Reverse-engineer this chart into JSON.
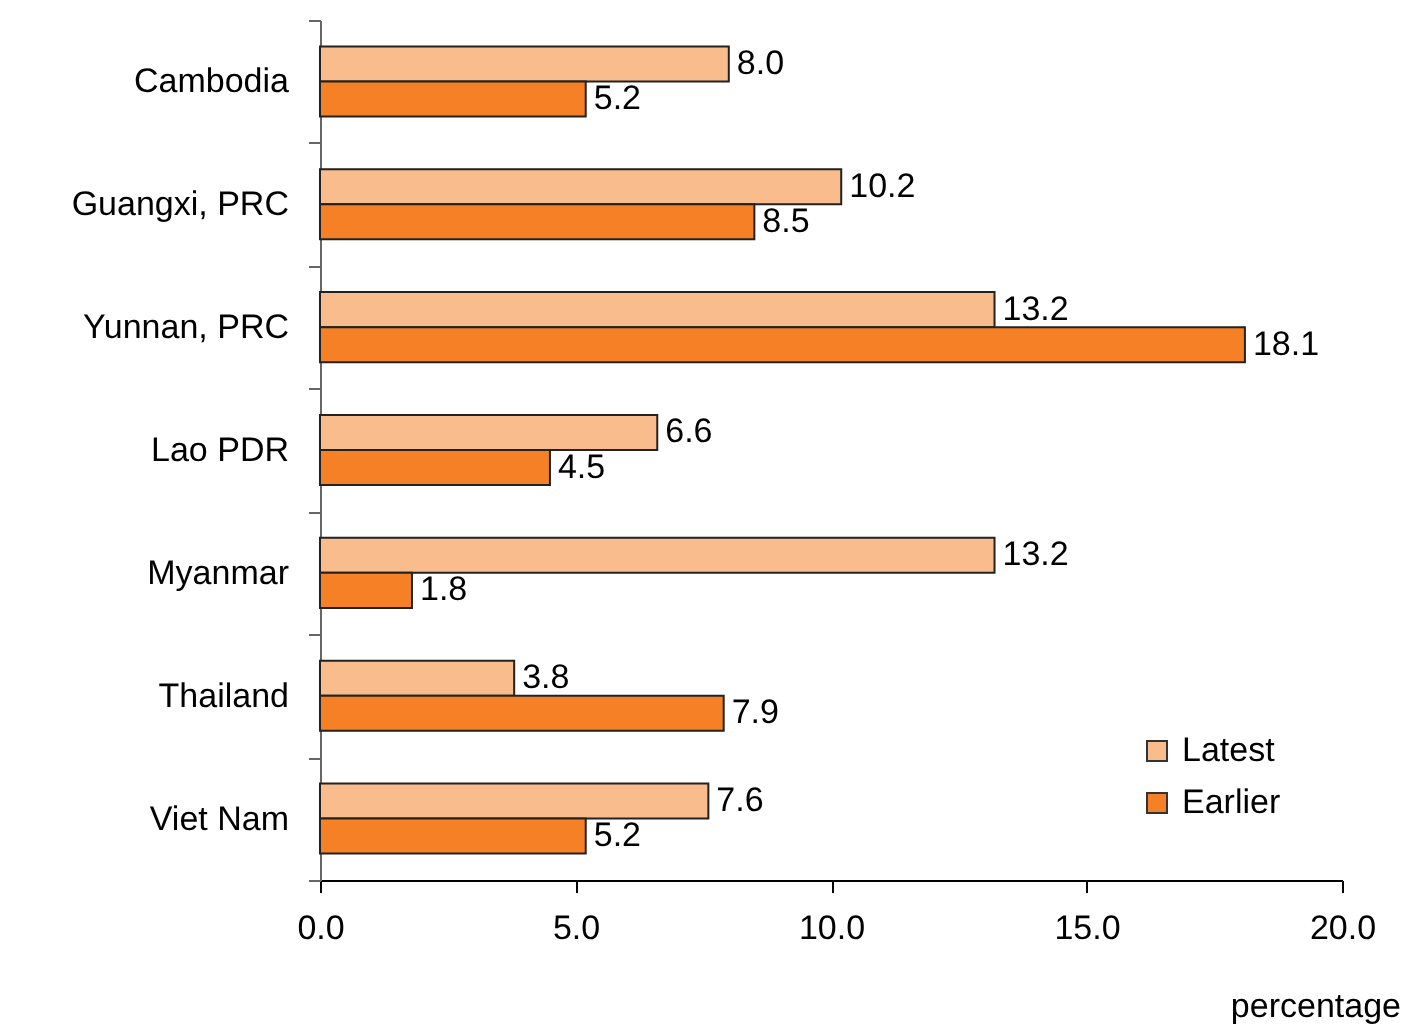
{
  "chart_data": {
    "type": "bar",
    "orientation": "horizontal",
    "categories": [
      "Cambodia",
      "Guangxi, PRC",
      "Yunnan, PRC",
      "Lao PDR",
      "Myanmar",
      "Thailand",
      "Viet Nam"
    ],
    "series": [
      {
        "name": "Latest",
        "color": "#f9bc8c",
        "values": [
          8.0,
          10.2,
          13.2,
          6.6,
          13.2,
          3.8,
          7.6
        ],
        "value_labels": [
          "8.0",
          "10.2",
          "13.2",
          "6.6",
          "13.2",
          "3.8",
          "7.6"
        ]
      },
      {
        "name": "Earlier",
        "color": "#f58025",
        "values": [
          5.2,
          8.5,
          18.1,
          4.5,
          1.8,
          7.9,
          5.2
        ],
        "value_labels": [
          "5.2",
          "8.5",
          "18.1",
          "4.5",
          "1.8",
          "7.9",
          "5.2"
        ]
      }
    ],
    "xlim": [
      0,
      20
    ],
    "xticks": [
      {
        "value": 0,
        "label": "0.0"
      },
      {
        "value": 5,
        "label": "5.0"
      },
      {
        "value": 10,
        "label": "10.0"
      },
      {
        "value": 15,
        "label": "15.0"
      },
      {
        "value": 20,
        "label": "20.0"
      }
    ],
    "xlabel": "percentage",
    "legend": "bottom right",
    "grid": false
  }
}
